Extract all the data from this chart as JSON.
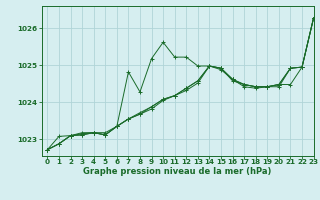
{
  "title": "Graphe pression niveau de la mer (hPa)",
  "bg_color": "#d6eef0",
  "grid_color": "#b0d4d8",
  "line_color": "#1a6b2a",
  "marker_color": "#1a6b2a",
  "xlim": [
    -0.5,
    23
  ],
  "ylim": [
    1022.55,
    1026.6
  ],
  "yticks": [
    1023,
    1024,
    1025,
    1026
  ],
  "xticks": [
    0,
    1,
    2,
    3,
    4,
    5,
    6,
    7,
    8,
    9,
    10,
    11,
    12,
    13,
    14,
    15,
    16,
    17,
    18,
    19,
    20,
    21,
    22,
    23
  ],
  "series": [
    [
      1022.72,
      1022.88,
      1023.1,
      1023.12,
      1023.18,
      1023.12,
      1023.35,
      1023.55,
      1023.68,
      1023.82,
      1024.05,
      1024.18,
      1024.32,
      1024.52,
      1024.98,
      1024.92,
      1024.58,
      1024.48,
      1024.42,
      1024.42,
      1024.48,
      1024.48,
      1024.95,
      1026.28
    ],
    [
      1022.72,
      1022.88,
      1023.1,
      1023.12,
      1023.18,
      1023.12,
      1023.35,
      1024.82,
      1024.28,
      1025.18,
      1025.62,
      1025.22,
      1025.22,
      1024.98,
      1024.98,
      1024.88,
      1024.62,
      1024.42,
      1024.38,
      1024.42,
      1024.42,
      1024.92,
      1024.95,
      1026.28
    ],
    [
      1022.72,
      1022.88,
      1023.1,
      1023.15,
      1023.18,
      1023.18,
      1023.35,
      1023.55,
      1023.68,
      1023.88,
      1024.08,
      1024.18,
      1024.38,
      1024.58,
      1024.98,
      1024.92,
      1024.62,
      1024.48,
      1024.42,
      1024.42,
      1024.48,
      1024.92,
      1024.95,
      1026.28
    ],
    [
      1022.72,
      1023.08,
      1023.1,
      1023.18,
      1023.18,
      1023.12,
      1023.35,
      1023.55,
      1023.72,
      1023.88,
      1024.08,
      1024.18,
      1024.38,
      1024.58,
      1024.98,
      1024.92,
      1024.62,
      1024.48,
      1024.42,
      1024.42,
      1024.48,
      1024.92,
      1024.95,
      1026.28
    ]
  ]
}
